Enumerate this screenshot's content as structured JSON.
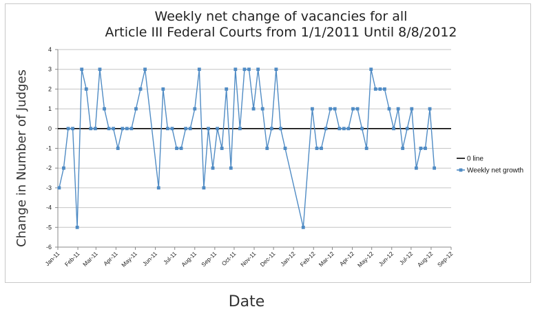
{
  "chart_data": {
    "type": "line",
    "title_line1": "Weekly net change of vacancies for all",
    "title_line2": "Article III Federal Courts from 1/1/2011 Until 8/8/2012",
    "xlabel": "Date",
    "ylabel": "Change in Number of Judges",
    "ylim": [
      -6,
      4
    ],
    "yticks": [
      4,
      3,
      2,
      1,
      0,
      -1,
      -2,
      -3,
      -4,
      -5,
      -6
    ],
    "xticks": [
      "Jan-11",
      "Feb-11",
      "Mar-11",
      "Apr-11",
      "May-11",
      "Jun-11",
      "Jul-11",
      "Aug-11",
      "Sep-11",
      "Oct-11",
      "Nov-11",
      "Dec-11",
      "Jan-12",
      "Feb-12",
      "Mar-12",
      "Apr-12",
      "May-12",
      "Jun-12",
      "Jul-12",
      "Aug-12",
      "Sep-12"
    ],
    "grid": true,
    "legend_position": "right",
    "series": [
      {
        "name": "0 line",
        "color": "#000000",
        "marker": "none",
        "points": [
          [
            "2011-01-01",
            0
          ],
          [
            "2012-09-01",
            0
          ]
        ]
      },
      {
        "name": "Weekly net growth",
        "color": "#4f8bc4",
        "marker": "square",
        "points": [
          [
            "2011-01-03",
            -3
          ],
          [
            "2011-01-10",
            -2
          ],
          [
            "2011-01-17",
            0
          ],
          [
            "2011-01-24",
            0
          ],
          [
            "2011-01-31",
            -5
          ],
          [
            "2011-02-07",
            3
          ],
          [
            "2011-02-14",
            2
          ],
          [
            "2011-02-21",
            0
          ],
          [
            "2011-02-28",
            0
          ],
          [
            "2011-03-07",
            3
          ],
          [
            "2011-03-14",
            1
          ],
          [
            "2011-03-21",
            0
          ],
          [
            "2011-03-28",
            0
          ],
          [
            "2011-04-04",
            -1
          ],
          [
            "2011-04-11",
            0
          ],
          [
            "2011-04-18",
            0
          ],
          [
            "2011-04-25",
            0
          ],
          [
            "2011-05-02",
            1
          ],
          [
            "2011-05-09",
            2
          ],
          [
            "2011-05-16",
            3
          ],
          [
            "2011-06-06",
            -3
          ],
          [
            "2011-06-13",
            2
          ],
          [
            "2011-06-20",
            0
          ],
          [
            "2011-06-27",
            0
          ],
          [
            "2011-07-04",
            -1
          ],
          [
            "2011-07-11",
            -1
          ],
          [
            "2011-07-18",
            0
          ],
          [
            "2011-07-25",
            0
          ],
          [
            "2011-08-01",
            1
          ],
          [
            "2011-08-08",
            3
          ],
          [
            "2011-08-15",
            -3
          ],
          [
            "2011-08-22",
            0
          ],
          [
            "2011-08-29",
            -2
          ],
          [
            "2011-09-05",
            0
          ],
          [
            "2011-09-12",
            -1
          ],
          [
            "2011-09-19",
            2
          ],
          [
            "2011-09-26",
            -2
          ],
          [
            "2011-10-03",
            3
          ],
          [
            "2011-10-10",
            0
          ],
          [
            "2011-10-17",
            3
          ],
          [
            "2011-10-24",
            3
          ],
          [
            "2011-10-31",
            1
          ],
          [
            "2011-11-07",
            3
          ],
          [
            "2011-11-14",
            1
          ],
          [
            "2011-11-21",
            -1
          ],
          [
            "2011-11-28",
            0
          ],
          [
            "2011-12-05",
            3
          ],
          [
            "2011-12-12",
            0
          ],
          [
            "2011-12-19",
            -1
          ],
          [
            "2012-01-16",
            -5
          ],
          [
            "2012-01-30",
            1
          ],
          [
            "2012-02-06",
            -1
          ],
          [
            "2012-02-13",
            -1
          ],
          [
            "2012-02-20",
            0
          ],
          [
            "2012-02-27",
            1
          ],
          [
            "2012-03-05",
            1
          ],
          [
            "2012-03-12",
            0
          ],
          [
            "2012-03-19",
            0
          ],
          [
            "2012-03-26",
            0
          ],
          [
            "2012-04-02",
            1
          ],
          [
            "2012-04-09",
            1
          ],
          [
            "2012-04-16",
            0
          ],
          [
            "2012-04-23",
            -1
          ],
          [
            "2012-04-30",
            3
          ],
          [
            "2012-05-07",
            2
          ],
          [
            "2012-05-14",
            2
          ],
          [
            "2012-05-21",
            2
          ],
          [
            "2012-05-28",
            1
          ],
          [
            "2012-06-04",
            0
          ],
          [
            "2012-06-11",
            1
          ],
          [
            "2012-06-18",
            -1
          ],
          [
            "2012-06-25",
            0
          ],
          [
            "2012-07-02",
            1
          ],
          [
            "2012-07-09",
            -2
          ],
          [
            "2012-07-16",
            -1
          ],
          [
            "2012-07-23",
            -1
          ],
          [
            "2012-07-30",
            1
          ],
          [
            "2012-08-06",
            -2
          ]
        ]
      }
    ]
  }
}
